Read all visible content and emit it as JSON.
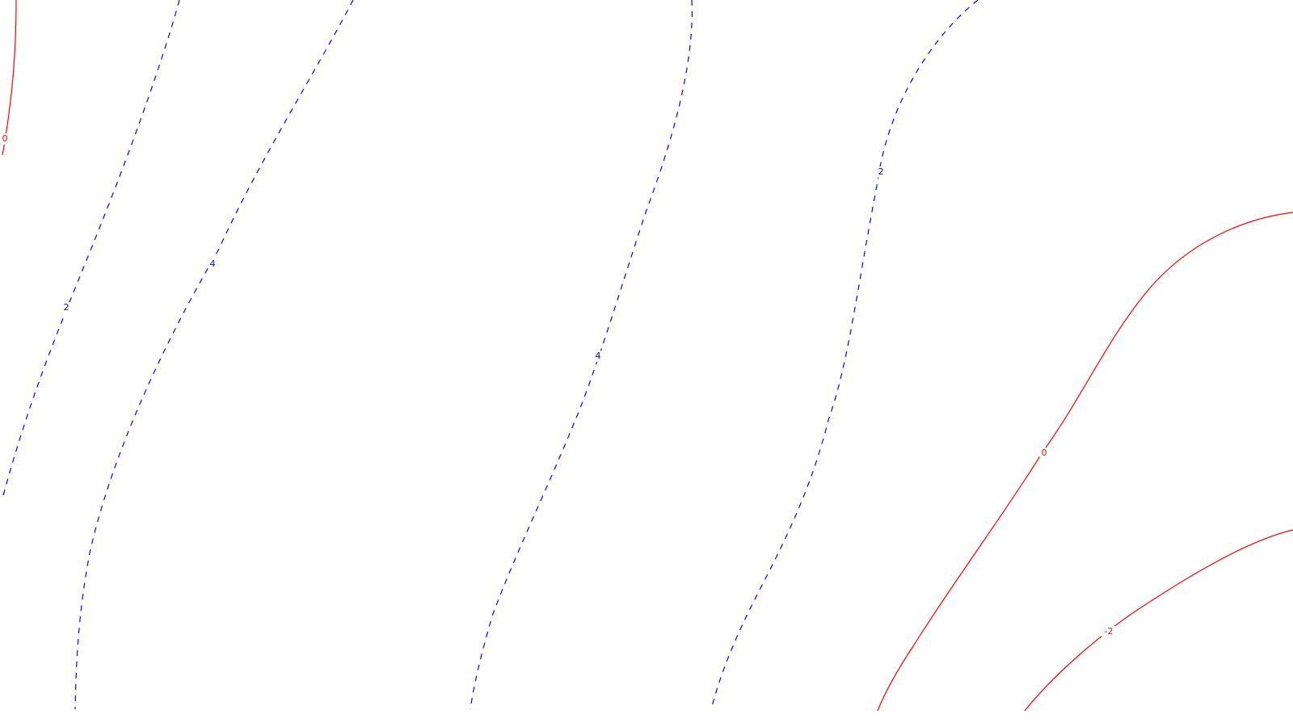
{
  "chart_data": {
    "type": "contour",
    "title": "",
    "xlabel": "",
    "ylabel": "",
    "grid": false,
    "legend": "none",
    "colors": {
      "positive": "#0000ff",
      "zero": "#ff0000",
      "negative": "#ff0000",
      "background": "#ffffff"
    },
    "line_styles": {
      "positive": "dashed",
      "zero": "solid",
      "negative": "solid"
    },
    "contours": [
      {
        "level": 0,
        "label": "0"
      },
      {
        "level": 2,
        "label": "2"
      },
      {
        "level": 4,
        "label": "4"
      },
      {
        "level": 4,
        "label": "4"
      },
      {
        "level": 2,
        "label": "2"
      },
      {
        "level": 0,
        "label": "0"
      },
      {
        "level": -2,
        "label": "-2"
      }
    ]
  }
}
